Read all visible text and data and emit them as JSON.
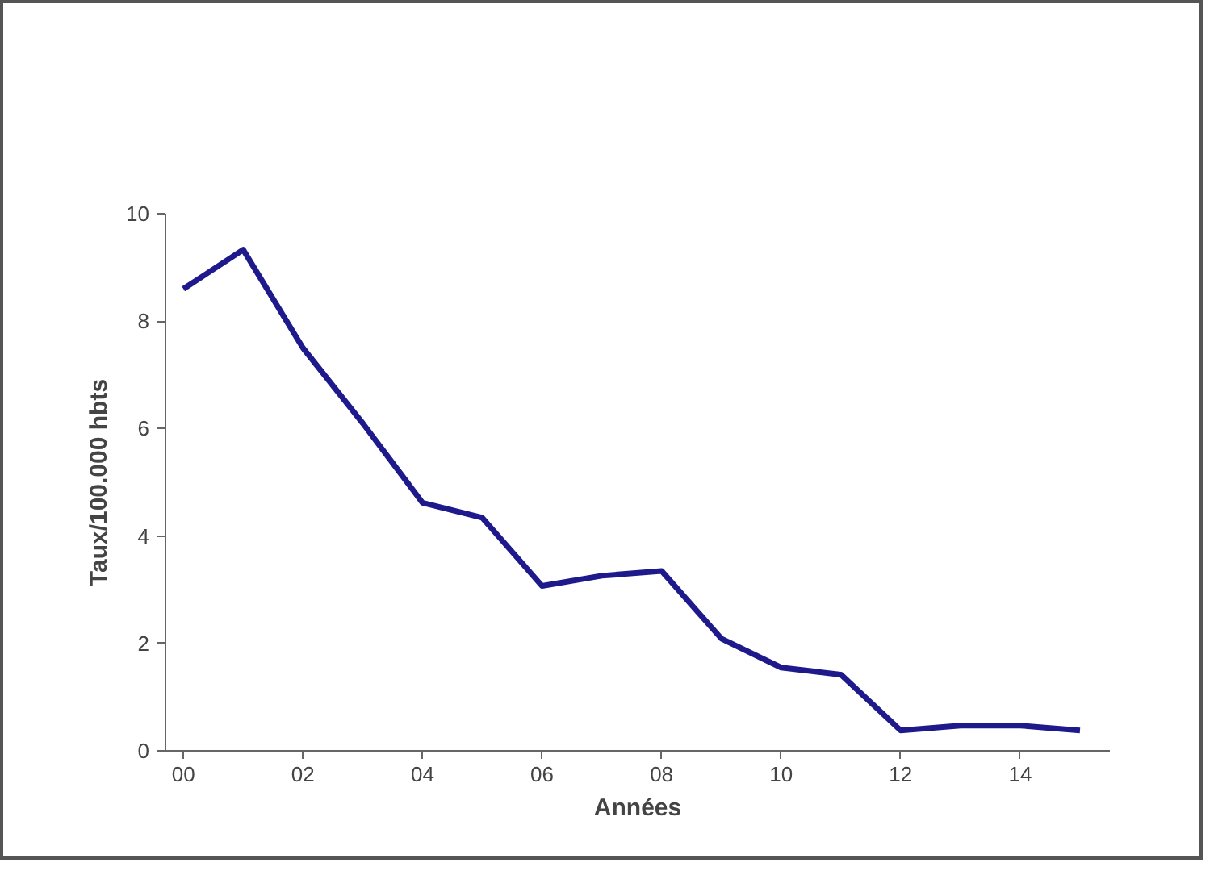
{
  "chart_data": {
    "type": "line",
    "xlabel": "Années",
    "ylabel": "Taux/100.000 hbts",
    "x": [
      0,
      1,
      2,
      3,
      4,
      5,
      6,
      7,
      8,
      9,
      10,
      11,
      12,
      13,
      14,
      15
    ],
    "series": [
      {
        "color": "#1f1a8c",
        "values": [
          8.6,
          9.33,
          7.5,
          6.1,
          4.62,
          4.34,
          3.07,
          3.26,
          3.35,
          2.09,
          1.55,
          1.42,
          0.38,
          0.47,
          0.47,
          0.38
        ]
      }
    ],
    "xlim": [
      -0.3,
      15.5
    ],
    "ylim": [
      0,
      10
    ],
    "xticks": [
      {
        "value": 0,
        "label": "00"
      },
      {
        "value": 2,
        "label": "02"
      },
      {
        "value": 4,
        "label": "04"
      },
      {
        "value": 6,
        "label": "06"
      },
      {
        "value": 8,
        "label": "08"
      },
      {
        "value": 10,
        "label": "10"
      },
      {
        "value": 12,
        "label": "12"
      },
      {
        "value": 14,
        "label": "14"
      }
    ],
    "yticks": [
      0,
      2,
      4,
      6,
      8,
      10
    ],
    "grid": false,
    "marker": "none",
    "line_style": "solid"
  }
}
